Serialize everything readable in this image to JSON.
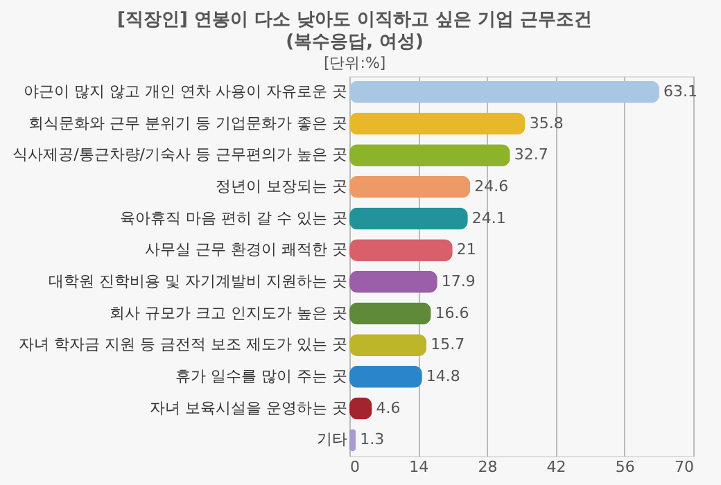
{
  "chart_data": {
    "type": "bar",
    "orientation": "horizontal",
    "title": "[직장인] 연봉이 다소 낮아도 이직하고 싶은 기업 근무조건 (복수응답, 여성)",
    "subtitle": "[단위:%]",
    "categories": [
      "야근이 많지 않고 개인 연차 사용이 자유로운 곳",
      "회식문화와 근무 분위기 등 기업문화가 좋은 곳",
      "식사제공/통근차량/기숙사 등 근무편의가 높은 곳",
      "정년이 보장되는 곳",
      "육아휴직 마음 편히 갈 수 있는 곳",
      "사무실 근무 환경이 쾌적한 곳",
      "대학원 진학비용 및 자기계발비 지원하는 곳",
      "회사 규모가 크고 인지도가 높은 곳",
      "자녀 학자금 지원 등 금전적 보조 제도가 있는 곳",
      "휴가 일수를 많이 주는 곳",
      "자녀 보육시설을 운영하는 곳",
      "기타"
    ],
    "values": [
      63.1,
      35.8,
      32.7,
      24.6,
      24.1,
      21,
      17.9,
      16.6,
      15.7,
      14.8,
      4.6,
      1.3
    ],
    "colors": [
      "#a9c6e3",
      "#e6b82a",
      "#8db32a",
      "#ee9a66",
      "#23939a",
      "#d9606a",
      "#9a5fa8",
      "#5e8a3a",
      "#bdb52a",
      "#2a86c8",
      "#a3242c",
      "#a79ad0"
    ],
    "xlim": [
      0,
      70
    ],
    "xticks": [
      0,
      14,
      28,
      42,
      56,
      70
    ],
    "grid": "x",
    "data_labels": true
  }
}
